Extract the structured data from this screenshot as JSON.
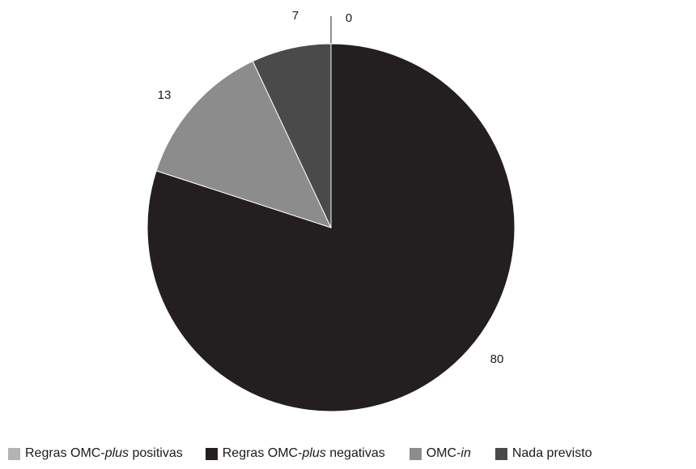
{
  "chart_data": {
    "type": "pie",
    "start": "top",
    "direction": "clockwise",
    "slices": [
      {
        "label_prefix": "Regras OMC-",
        "label_italic": "plus",
        "label_suffix": " positivas",
        "value": 0,
        "color": "#b3b3b3"
      },
      {
        "label_prefix": "Regras OMC-",
        "label_italic": "plus",
        "label_suffix": " negativas",
        "value": 80,
        "color": "#231f20"
      },
      {
        "label_prefix": "OMC-",
        "label_italic": "in",
        "label_suffix": "",
        "value": 13,
        "color": "#8c8c8c"
      },
      {
        "label_prefix": "Nada previsto",
        "label_italic": "",
        "label_suffix": "",
        "value": 7,
        "color": "#4a4a4a"
      }
    ],
    "legend_position": "bottom"
  }
}
